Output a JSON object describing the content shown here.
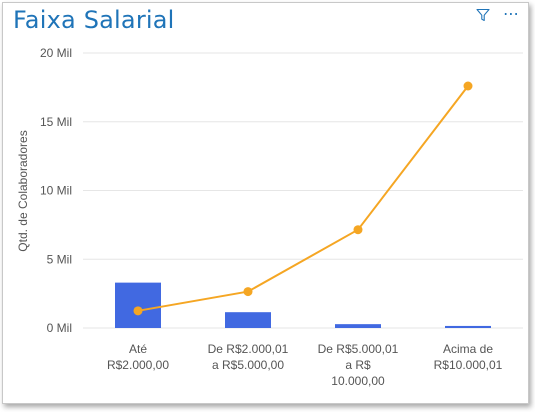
{
  "title": "Faixa Salarial",
  "toolbar": {
    "filter_icon": "filter-icon",
    "more_icon": "more-options-icon",
    "more_glyph": "⋯"
  },
  "colors": {
    "title": "#1F74B8",
    "bars": "#4169E1",
    "line": "#F5A623",
    "grid": "#e6e6e6",
    "text": "#555555"
  },
  "chart_data": {
    "type": "bar",
    "ylabel": "Qtd. de Colaboradores",
    "xlabel": "",
    "ylim": [
      0,
      20000
    ],
    "y_ticks": [
      {
        "value": 0,
        "label": "0 Mil"
      },
      {
        "value": 5000,
        "label": "5 Mil"
      },
      {
        "value": 10000,
        "label": "10 Mil"
      },
      {
        "value": 15000,
        "label": "15 Mil"
      },
      {
        "value": 20000,
        "label": "20 Mil"
      }
    ],
    "grid": true,
    "categories": [
      [
        "Até",
        "R$2.000,00"
      ],
      [
        "De R$2.000,01",
        "a R$5.000,00"
      ],
      [
        "De R$5.000,01",
        "a R$",
        "10.000,00"
      ],
      [
        "Acima de",
        "R$10.000,01"
      ]
    ],
    "series": [
      {
        "kind": "bar",
        "values": [
          3300,
          1150,
          280,
          150
        ]
      },
      {
        "kind": "line",
        "values": [
          1250,
          2650,
          7150,
          17600
        ]
      }
    ]
  }
}
